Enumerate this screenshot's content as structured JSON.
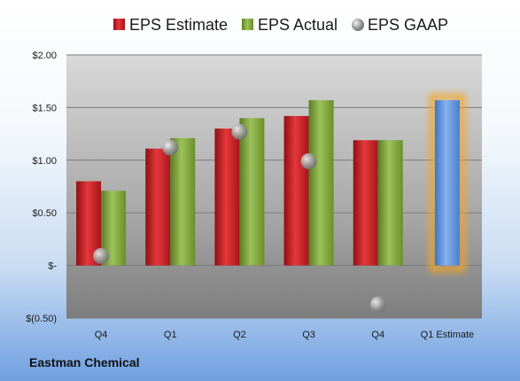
{
  "company": "Eastman Chemical",
  "chart_data": {
    "type": "bar",
    "categories": [
      "Q4",
      "Q1",
      "Q2",
      "Q3",
      "Q4",
      "Q1 Estimate"
    ],
    "ylim": [
      -0.5,
      2.0
    ],
    "yticks": [
      -0.5,
      0,
      0.5,
      1.0,
      1.5,
      2.0
    ],
    "ytick_labels": [
      "$(0.50)",
      "$-",
      "$0.50",
      "$1.00",
      "$1.50",
      "$2.00"
    ],
    "grid": true,
    "legend_position": "top",
    "series": [
      {
        "name": "EPS Estimate",
        "type": "bar",
        "color": "#c0191c",
        "values": [
          0.8,
          1.11,
          1.3,
          1.42,
          1.19,
          null
        ]
      },
      {
        "name": "EPS Actual",
        "type": "bar",
        "color": "#7ea43a",
        "values": [
          0.71,
          1.21,
          1.4,
          1.57,
          1.19,
          null
        ]
      },
      {
        "name": "EPS GAAP",
        "type": "scatter",
        "color": "#a8a8a8",
        "values": [
          0.09,
          1.12,
          1.27,
          0.99,
          -0.37,
          null
        ]
      }
    ],
    "estimate_bar": {
      "category": "Q1 Estimate",
      "value": 1.57,
      "color": "#5b8fd6",
      "glow": "#f5a623"
    }
  }
}
